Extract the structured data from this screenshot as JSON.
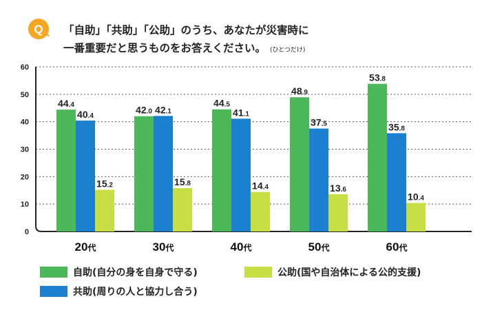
{
  "question_badge": "Q",
  "title_line1": "「自助」「共助」「公助」のうち、あなたが災害時に",
  "title_line2": "一番重要だと思うものをお答えください。",
  "title_note": "(ひとつだけ)",
  "colors": {
    "self_help": "#4cb85a",
    "mutual_help": "#1a80cf",
    "public_help": "#c8de45",
    "badge": "#f5a623",
    "grid": "#555555"
  },
  "chart_data": {
    "type": "bar",
    "categories": [
      "20代",
      "30代",
      "40代",
      "50代",
      "60代"
    ],
    "series": [
      {
        "name": "自助(自分の身を自身で守る)",
        "values": [
          44.4,
          42.0,
          44.5,
          48.9,
          53.8
        ]
      },
      {
        "name": "共助(周りの人と協力し合う)",
        "values": [
          40.4,
          42.1,
          41.1,
          37.5,
          35.8
        ]
      },
      {
        "name": "公助(国や自治体による公的支援)",
        "values": [
          15.2,
          15.8,
          14.4,
          13.6,
          10.4
        ]
      }
    ],
    "ylim": [
      0,
      60
    ],
    "yticks": [
      0,
      10,
      20,
      30,
      40,
      50,
      60
    ],
    "grid": true
  }
}
